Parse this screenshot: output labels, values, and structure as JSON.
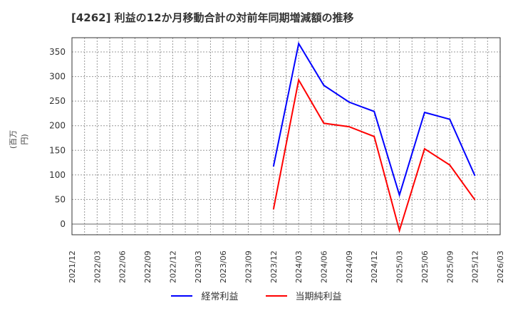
{
  "title": "[4262]  利益の12か月移動合計の対前年同期増減額の推移",
  "ylabel": "(百万円)",
  "legend": [
    {
      "label": "経常利益",
      "color": "#0000ff"
    },
    {
      "label": "当期純利益",
      "color": "#ff0000"
    }
  ],
  "chart_data": {
    "type": "line",
    "title": "[4262]  利益の12か月移動合計の対前年同期増減額の推移",
    "xlabel": "",
    "ylabel": "(百万円)",
    "categories": [
      "2021/12",
      "2022/03",
      "2022/06",
      "2022/09",
      "2022/12",
      "2023/03",
      "2023/06",
      "2023/09",
      "2023/12",
      "2024/03",
      "2024/06",
      "2024/09",
      "2024/12",
      "2025/03",
      "2025/06",
      "2025/09",
      "2025/12",
      "2026/03"
    ],
    "series": [
      {
        "name": "経常利益",
        "color": "#0000ff",
        "values": [
          null,
          null,
          null,
          null,
          null,
          null,
          null,
          null,
          117,
          367,
          282,
          248,
          229,
          59,
          227,
          213,
          98,
          null
        ]
      },
      {
        "name": "当期純利益",
        "color": "#ff0000",
        "values": [
          null,
          null,
          null,
          null,
          null,
          null,
          null,
          null,
          30,
          293,
          205,
          198,
          178,
          -13,
          153,
          120,
          49,
          null
        ]
      }
    ],
    "yticks": [
      0,
      50,
      100,
      150,
      200,
      250,
      300,
      350
    ],
    "ylim": [
      -22,
      380
    ],
    "grid": true,
    "legend_position": "bottom"
  }
}
